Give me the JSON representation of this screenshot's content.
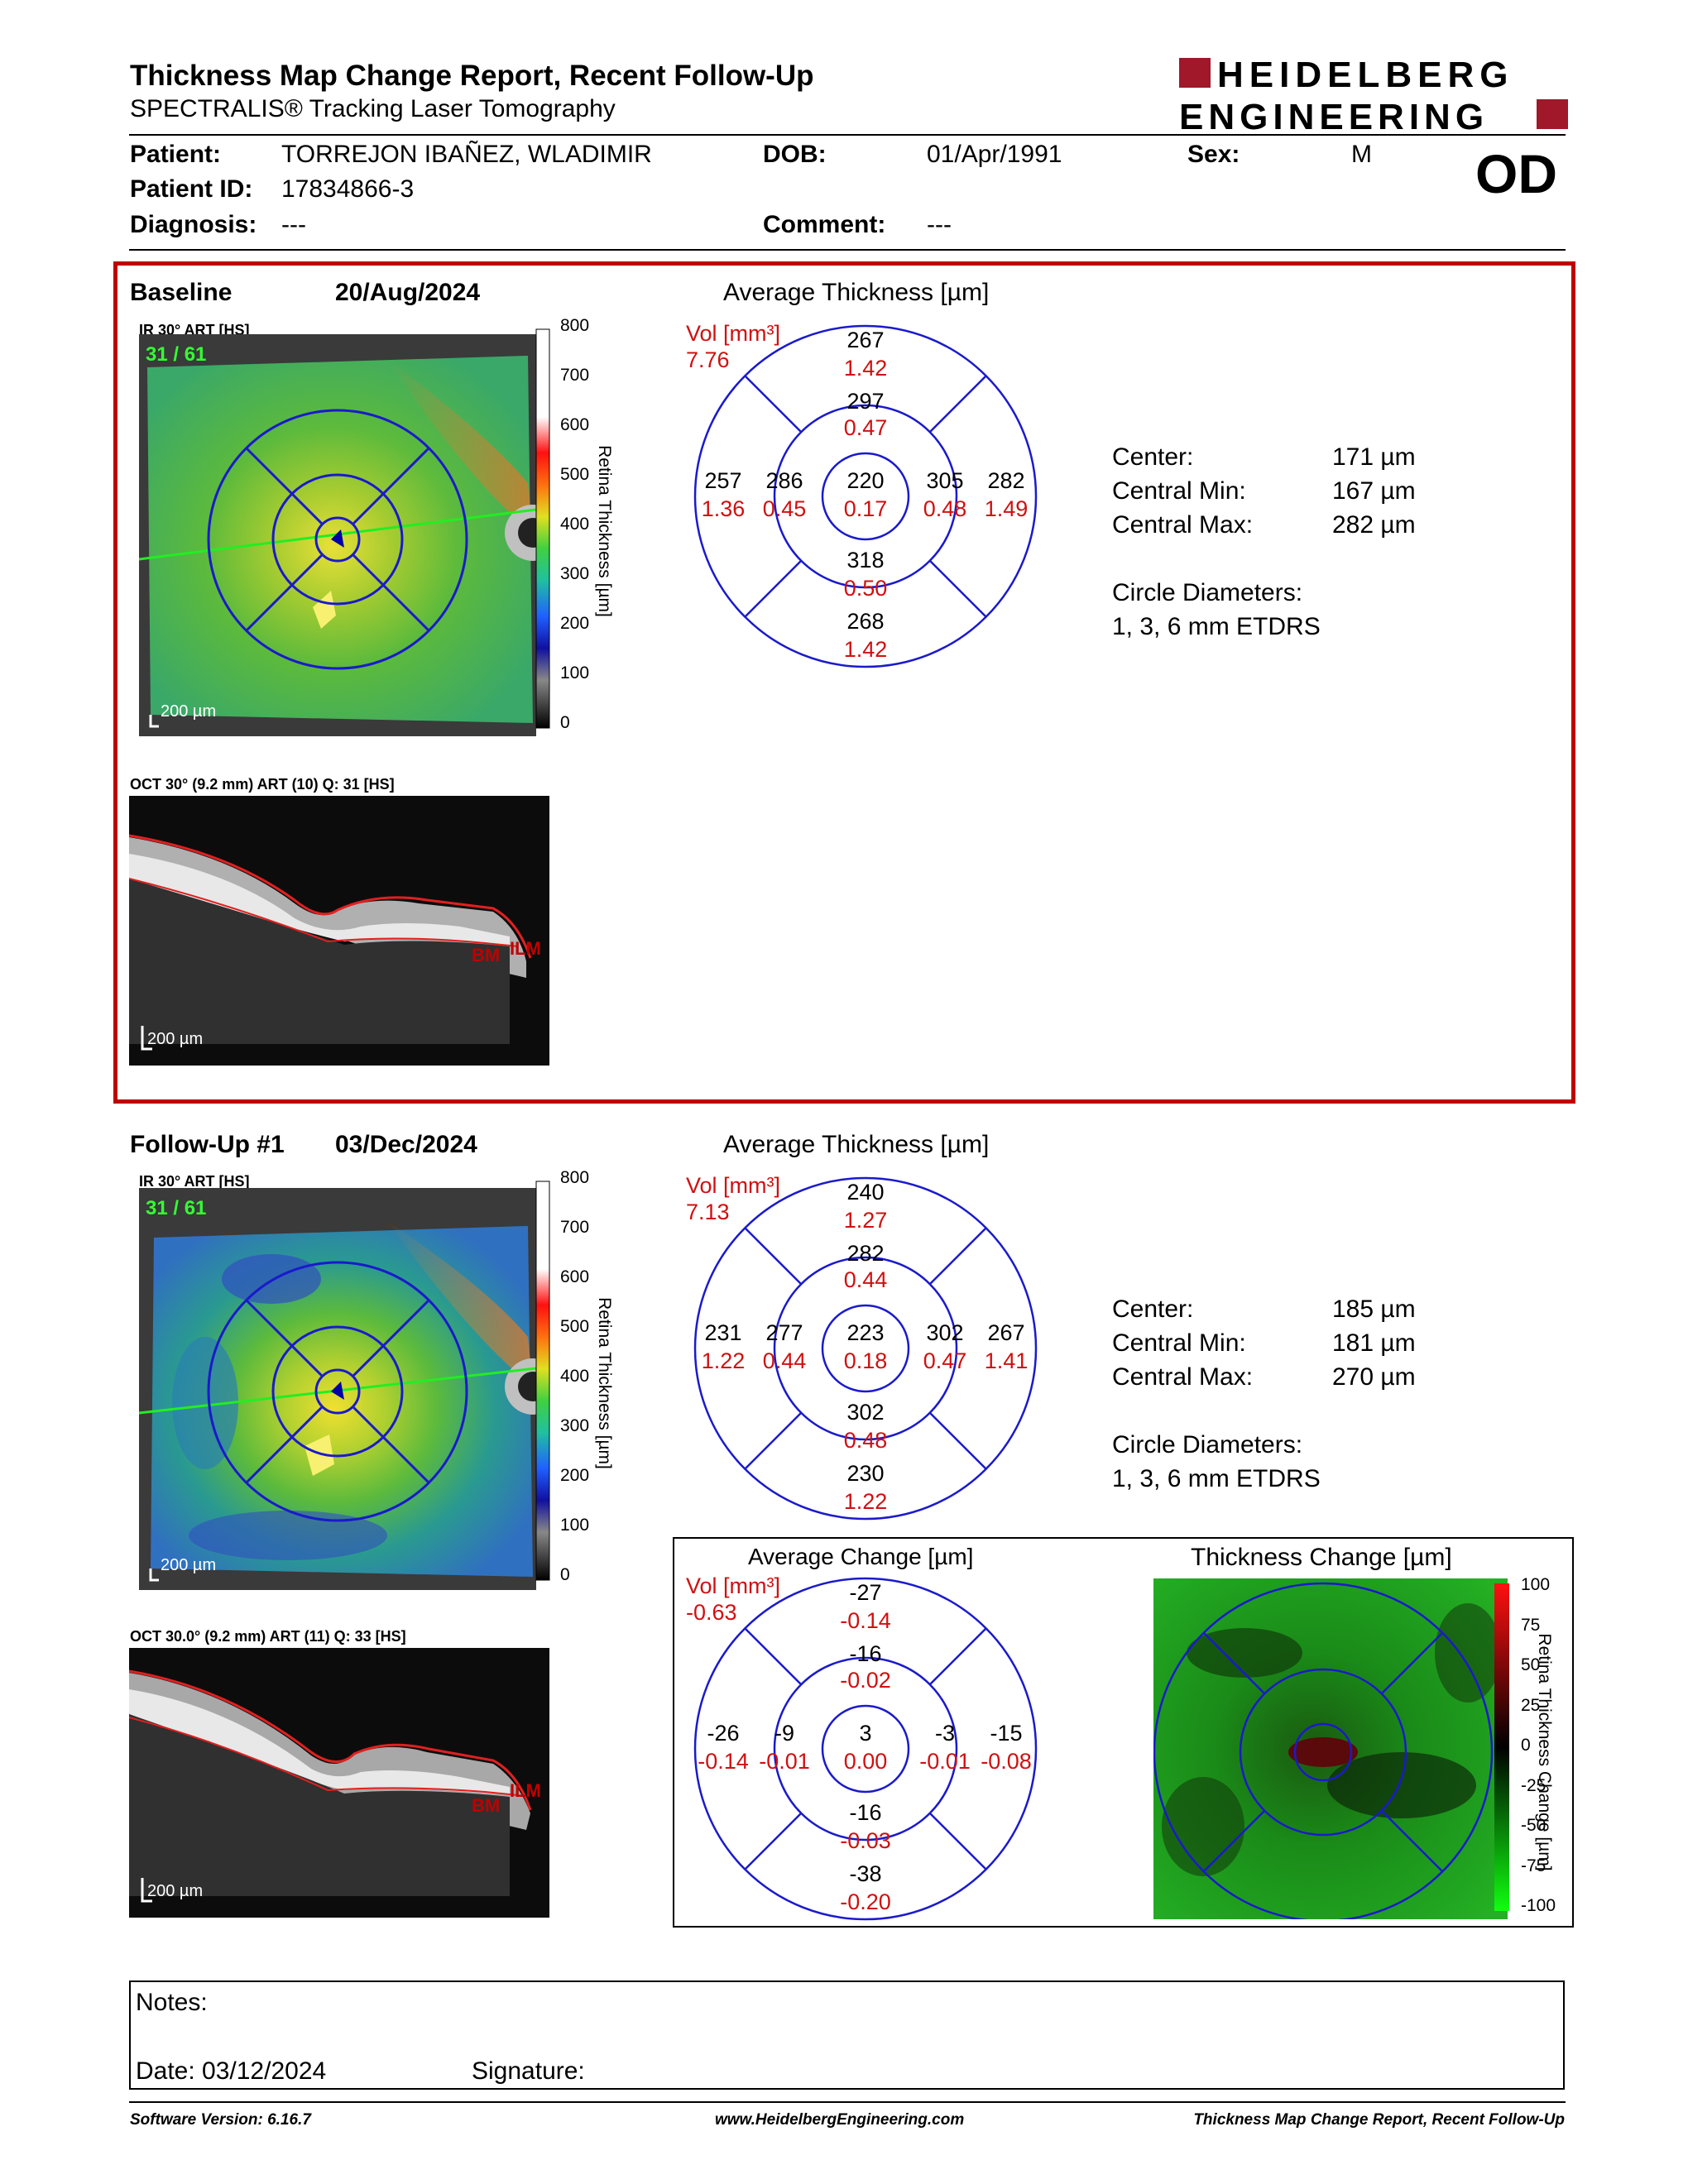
{
  "header": {
    "title": "Thickness Map Change Report, Recent Follow-Up",
    "subtitle": "SPECTRALIS® Tracking Laser Tomography",
    "logo_line1": "HEIDELBERG",
    "logo_line2": "ENGINEERING",
    "brand_color": "#a0182a"
  },
  "patient": {
    "patient_label": "Patient:",
    "patient_value": "TORREJON IBAÑEZ, WLADIMIR",
    "dob_label": "DOB:",
    "dob_value": "01/Apr/1991",
    "sex_label": "Sex:",
    "sex_value": "M",
    "id_label": "Patient ID:",
    "id_value": "17834866-3",
    "diag_label": "Diagnosis:",
    "diag_value": "---",
    "comment_label": "Comment:",
    "comment_value": "---",
    "eye": "OD"
  },
  "baseline": {
    "label": "Baseline",
    "date": "20/Aug/2024",
    "ir_label": "IR 30° ART [HS]",
    "frame_counter": "31 / 61",
    "scale": "200 µm",
    "colorbar_ticks": [
      "800",
      "700",
      "600",
      "500",
      "400",
      "300",
      "200",
      "100",
      "0"
    ],
    "colorbar_title": "Retina Thickness [µm]",
    "oct_label": "OCT 30° (9.2 mm) ART (10) Q: 31 [HS]",
    "oct_scale": "200 µm",
    "bm": "BM",
    "ilm": "ILM",
    "avg_title": "Average Thickness [µm]",
    "vol_label": "Vol [mm³]",
    "vol_total": "7.76",
    "sectors": {
      "outer_top": [
        "267",
        "1.42"
      ],
      "inner_top": [
        "297",
        "0.47"
      ],
      "outer_left": [
        "257",
        "1.36"
      ],
      "inner_left": [
        "286",
        "0.45"
      ],
      "center": [
        "220",
        "0.17"
      ],
      "inner_right": [
        "305",
        "0.48"
      ],
      "outer_right": [
        "282",
        "1.49"
      ],
      "inner_bottom": [
        "318",
        "0.50"
      ],
      "outer_bottom": [
        "268",
        "1.42"
      ]
    },
    "stats": {
      "center_label": "Center:",
      "center_value": "171 µm",
      "min_label": "Central Min:",
      "min_value": "167 µm",
      "max_label": "Central Max:",
      "max_value": "282 µm",
      "circle_label": "Circle Diameters:",
      "circle_value": "1, 3, 6 mm ETDRS"
    }
  },
  "followup": {
    "label": "Follow-Up #1",
    "date": "03/Dec/2024",
    "ir_label": "IR 30° ART [HS]",
    "frame_counter": "31 / 61",
    "scale": "200 µm",
    "colorbar_ticks": [
      "800",
      "700",
      "600",
      "500",
      "400",
      "300",
      "200",
      "100",
      "0"
    ],
    "colorbar_title": "Retina Thickness [µm]",
    "oct_label": "OCT 30.0° (9.2 mm) ART (11) Q: 33 [HS]",
    "oct_scale": "200 µm",
    "bm": "BM",
    "ilm": "ILM",
    "avg_title": "Average Thickness [µm]",
    "vol_label": "Vol [mm³]",
    "vol_total": "7.13",
    "sectors": {
      "outer_top": [
        "240",
        "1.27"
      ],
      "inner_top": [
        "282",
        "0.44"
      ],
      "outer_left": [
        "231",
        "1.22"
      ],
      "inner_left": [
        "277",
        "0.44"
      ],
      "center": [
        "223",
        "0.18"
      ],
      "inner_right": [
        "302",
        "0.47"
      ],
      "outer_right": [
        "267",
        "1.41"
      ],
      "inner_bottom": [
        "302",
        "0.48"
      ],
      "outer_bottom": [
        "230",
        "1.22"
      ]
    },
    "stats": {
      "center_label": "Center:",
      "center_value": "185 µm",
      "min_label": "Central Min:",
      "min_value": "181 µm",
      "max_label": "Central Max:",
      "max_value": "270 µm",
      "circle_label": "Circle Diameters:",
      "circle_value": "1, 3, 6 mm ETDRS"
    }
  },
  "change": {
    "avg_title": "Average Change [µm]",
    "vol_label": "Vol [mm³]",
    "vol_total": "-0.63",
    "sectors": {
      "outer_top": [
        "-27",
        "-0.14"
      ],
      "inner_top": [
        "-16",
        "-0.02"
      ],
      "outer_left": [
        "-26",
        "-0.14"
      ],
      "inner_left": [
        "-9",
        "-0.01"
      ],
      "center": [
        "3",
        "0.00"
      ],
      "inner_right": [
        "-3",
        "-0.01"
      ],
      "outer_right": [
        "-15",
        "-0.08"
      ],
      "inner_bottom": [
        "-16",
        "-0.03"
      ],
      "outer_bottom": [
        "-38",
        "-0.20"
      ]
    },
    "map_title": "Thickness Change [µm]",
    "map_ticks": [
      "100",
      "75",
      "50",
      "25",
      "0",
      "-25",
      "-50",
      "-75",
      "-100"
    ],
    "map_bar_title": "Retina Thickness Change [µm]"
  },
  "notes": {
    "notes_label": "Notes:",
    "date_label": "Date: 03/12/2024",
    "signature_label": "Signature:"
  },
  "footer": {
    "version": "Software Version: 6.16.7",
    "url": "www.HeidelbergEngineering.com",
    "report": "Thickness Map Change Report, Recent Follow-Up"
  }
}
